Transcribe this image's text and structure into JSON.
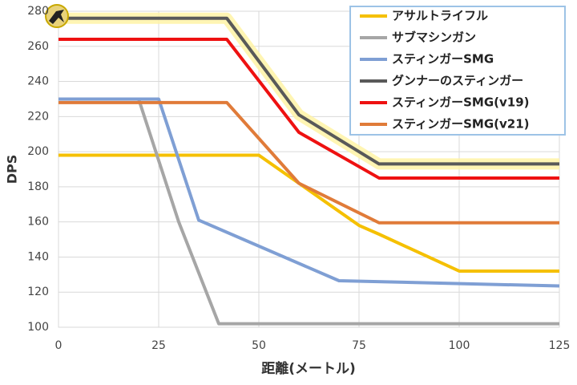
{
  "chart_data": {
    "type": "line",
    "x_label": "距離(メートル)",
    "y_label": "DPS",
    "xlim": [
      0,
      125
    ],
    "xticks": [
      0,
      25,
      50,
      75,
      100,
      125
    ],
    "ylim": [
      100,
      280
    ],
    "yticks": [
      100,
      120,
      140,
      160,
      180,
      200,
      220,
      240,
      260,
      280
    ],
    "grid": true,
    "legend": "upper right",
    "series": [
      {
        "name": "アサルトライフル",
        "color": "#f5c000",
        "x": [
          0,
          50,
          60,
          75,
          80,
          100,
          125
        ],
        "values": [
          198,
          198,
          182,
          158,
          153,
          132,
          132
        ]
      },
      {
        "name": "サブマシンガン",
        "color": "#a6a6a6",
        "x": [
          0,
          20,
          30,
          40,
          125
        ],
        "values": [
          230,
          230,
          160,
          102,
          102
        ]
      },
      {
        "name": "スティンガーSMG",
        "color": "#7f9fd4",
        "x": [
          0,
          25,
          35,
          70,
          125
        ],
        "values": [
          230,
          230,
          161,
          126.5,
          123.5
        ]
      },
      {
        "name": "グンナーのスティンガー",
        "color": "#595959",
        "highlight": "#fff3a0",
        "x": [
          0,
          42,
          60,
          80,
          125
        ],
        "values": [
          276,
          276,
          221,
          193,
          193
        ]
      },
      {
        "name": "スティンガーSMG(v19)",
        "color": "#ee1111",
        "x": [
          0,
          42,
          60,
          80,
          125
        ],
        "values": [
          264,
          264,
          211,
          185,
          185
        ]
      },
      {
        "name": "スティンガーSMG(v21)",
        "color": "#e07b39",
        "x": [
          0,
          42,
          60,
          80,
          125
        ],
        "values": [
          228,
          228,
          182,
          159.5,
          159.5
        ]
      }
    ]
  }
}
